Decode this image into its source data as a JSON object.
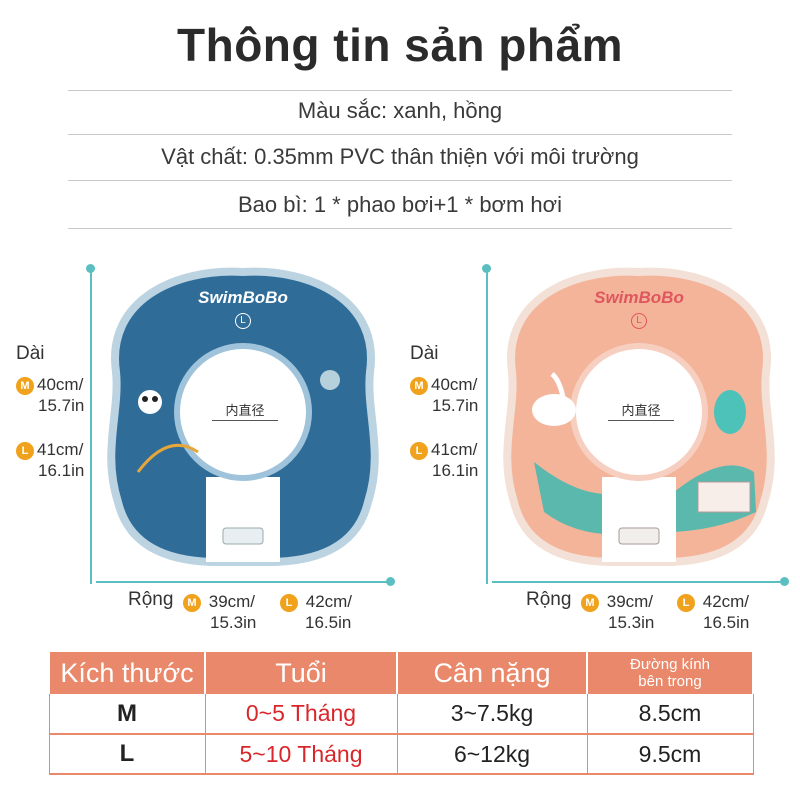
{
  "title": "Thông tin sản phẩm",
  "info": {
    "color": "Màu sắc: xanh, hồng",
    "material": "Vật chất: 0.35mm PVC thân thiện với môi trường",
    "package": "Bao bì: 1 * phao bơi+1 * bơm hơi"
  },
  "products": [
    {
      "brand": "SwimBoBo",
      "size_mark": "L",
      "inner_label": "内直径",
      "length_label": "Dài",
      "length_m": "40cm/",
      "length_m2": "15.7in",
      "length_l": "41cm/",
      "length_l2": "16.1in",
      "width_label": "Rộng",
      "width_m": "39cm/",
      "width_m2": "15.3in",
      "width_l": "42cm/",
      "width_l2": "16.5in",
      "badge_m": "M",
      "badge_l": "L",
      "ring_color": "#2f6d98"
    },
    {
      "brand": "SwimBoBo",
      "size_mark": "L",
      "inner_label": "内直径",
      "length_label": "Dài",
      "length_m": "40cm/",
      "length_m2": "15.7in",
      "length_l": "41cm/",
      "length_l2": "16.1in",
      "width_label": "Rộng",
      "width_m": "39cm/",
      "width_m2": "15.3in",
      "width_l": "42cm/",
      "width_l2": "16.5in",
      "badge_m": "M",
      "badge_l": "L",
      "ring_color": "#f4b49a"
    }
  ],
  "table": {
    "headers": [
      "Kích thước",
      "Tuổi",
      "Cân nặng",
      "Đường kính",
      "bên trong"
    ],
    "rows": [
      {
        "size": "M",
        "age": "0~5 Tháng",
        "weight": "3~7.5kg",
        "diameter": "8.5cm"
      },
      {
        "size": "L",
        "age": "5~10 Tháng",
        "weight": "6~12kg",
        "diameter": "9.5cm"
      }
    ]
  },
  "colors": {
    "accent": "#e9886a",
    "dimension_line": "#5bbfc2",
    "badge": "#f0a21c",
    "age_text": "#d9262a"
  }
}
